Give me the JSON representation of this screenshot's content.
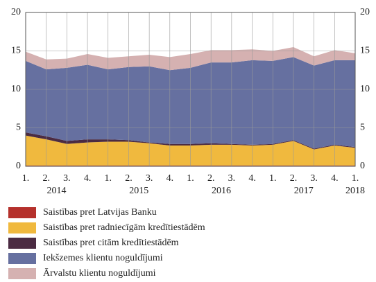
{
  "chart_data": {
    "type": "stacked_area",
    "categories": [
      "1.",
      "2.",
      "3.",
      "4.",
      "1.",
      "2.",
      "3.",
      "4.",
      "1.",
      "2.",
      "3.",
      "4.",
      "1.",
      "2.",
      "3.",
      "4.",
      "1."
    ],
    "years": [
      "2014",
      "2015",
      "2016",
      "2017",
      "2018"
    ],
    "ylim": [
      0,
      20
    ],
    "yticks": [
      0,
      5,
      10,
      15,
      20
    ],
    "y2lim": [
      0,
      20
    ],
    "y2ticks": [
      0,
      5,
      10,
      15,
      20
    ],
    "grid": true,
    "series": [
      {
        "name": "Saistības pret Latvijas Banku",
        "color": "#b5312c",
        "values": [
          0.1,
          0.1,
          0.1,
          0.1,
          0.1,
          0.1,
          0.1,
          0.1,
          0.1,
          0.1,
          0.1,
          0.1,
          0.1,
          0.1,
          0.1,
          0.1,
          0.1
        ]
      },
      {
        "name": "Saistības pret radniecīgām kredītiestādēm",
        "color": "#f0b93e",
        "values": [
          3.9,
          3.4,
          2.8,
          3.0,
          3.1,
          3.1,
          2.9,
          2.6,
          2.6,
          2.7,
          2.7,
          2.6,
          2.7,
          3.2,
          2.1,
          2.6,
          2.3
        ]
      },
      {
        "name": "Saistības pret citām kredītiestādēm",
        "color": "#4b2b42",
        "values": [
          0.4,
          0.4,
          0.4,
          0.4,
          0.3,
          0.2,
          0.1,
          0.2,
          0.2,
          0.2,
          0.1,
          0.1,
          0.1,
          0.1,
          0.1,
          0.1,
          0.1
        ]
      },
      {
        "name": "Iekšzemes klientu noguldījumi",
        "color": "#6670a0",
        "values": [
          9.3,
          8.7,
          9.5,
          9.7,
          9.1,
          9.5,
          9.9,
          9.6,
          9.9,
          10.5,
          10.6,
          11.0,
          10.8,
          10.8,
          10.8,
          11.0,
          11.3
        ]
      },
      {
        "name": "Ārvalstu klientu noguldījumi",
        "color": "#d5b1b1",
        "values": [
          1.2,
          1.3,
          1.2,
          1.4,
          1.5,
          1.4,
          1.5,
          1.7,
          1.8,
          1.6,
          1.6,
          1.4,
          1.3,
          1.3,
          1.2,
          1.3,
          0.9
        ]
      }
    ]
  }
}
